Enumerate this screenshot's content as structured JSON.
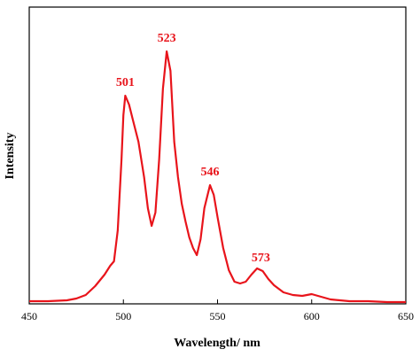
{
  "chart_data": {
    "type": "line",
    "xlabel": "Wavelength/ nm",
    "ylabel": "Intensity",
    "x": [
      450,
      460,
      470,
      475,
      480,
      485,
      490,
      493,
      495,
      497,
      499,
      500,
      501,
      503,
      505,
      508,
      511,
      513,
      515,
      517,
      519,
      521,
      523,
      525,
      527,
      529,
      531,
      533,
      535,
      537,
      539,
      541,
      543,
      546,
      548,
      550,
      553,
      556,
      559,
      562,
      565,
      568,
      571,
      574,
      577,
      580,
      585,
      590,
      595,
      600,
      605,
      610,
      620,
      630,
      640,
      650
    ],
    "values": [
      3,
      3,
      4,
      6,
      10,
      20,
      33,
      43,
      48,
      83,
      163,
      213,
      235,
      225,
      208,
      183,
      143,
      108,
      88,
      103,
      163,
      243,
      285,
      263,
      183,
      143,
      113,
      93,
      75,
      63,
      55,
      73,
      108,
      134,
      123,
      98,
      63,
      38,
      25,
      23,
      25,
      33,
      40,
      37,
      28,
      21,
      13,
      10,
      9,
      11,
      8,
      5,
      3,
      3,
      2,
      2
    ],
    "color": "#e8141b",
    "peaks": [
      501,
      523,
      546,
      573
    ],
    "xlim": [
      450,
      650
    ],
    "xticks": [
      450,
      500,
      550,
      600,
      650
    ],
    "ylim": [
      0,
      335
    ]
  }
}
